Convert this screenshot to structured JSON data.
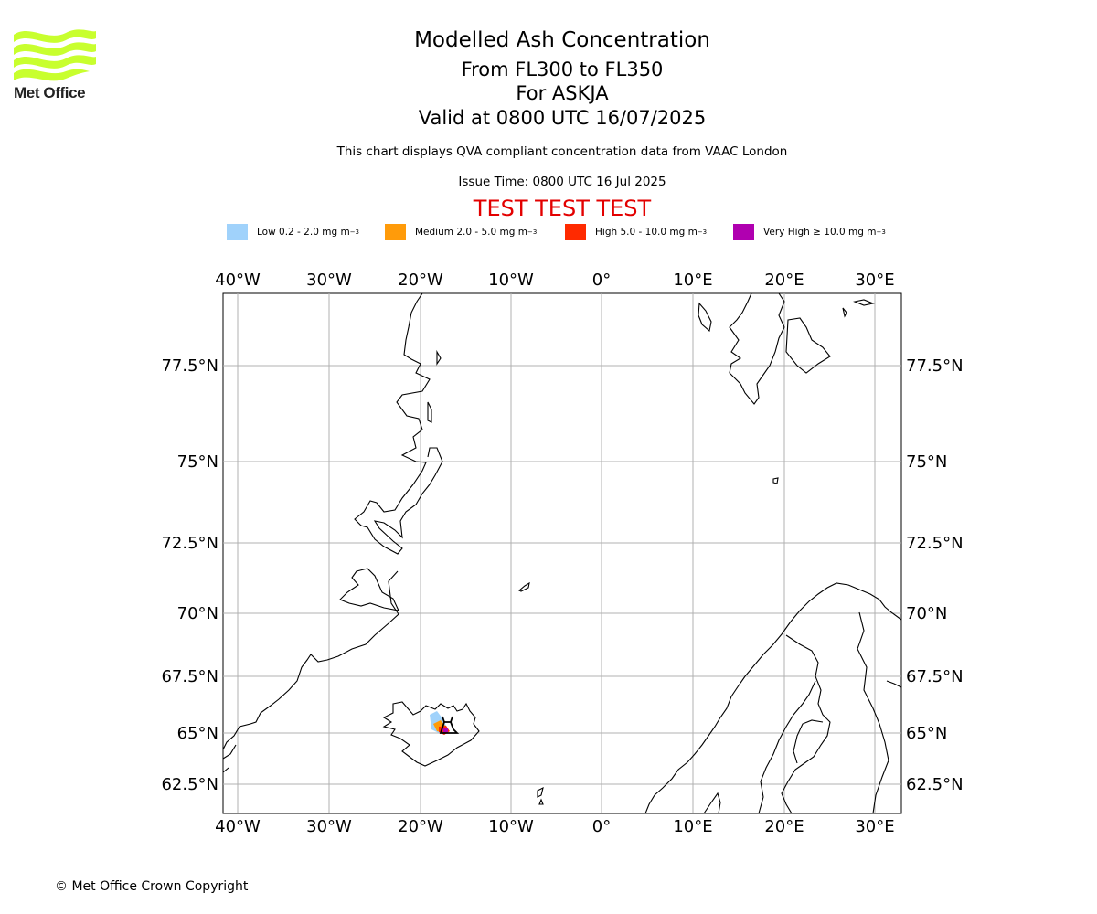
{
  "logo": {
    "text": "Met Office",
    "icon": "met-office-wave-logo",
    "color": "#c8ff2e"
  },
  "title": {
    "line1": "Modelled Ash Concentration",
    "line2": "From FL300 to FL350",
    "line3": "For ASKJA",
    "line4": "Valid at 0800 UTC 16/07/2025"
  },
  "subtitle": "This chart displays QVA compliant concentration data from VAAC London",
  "issue_time": "Issue Time: 0800 UTC 16 Jul 2025",
  "test_banner": "TEST TEST TEST",
  "legend": [
    {
      "label": "Low 0.2 - 2.0 mg m",
      "sup": "−3",
      "color": "#a0d2fb"
    },
    {
      "label": "Medium 2.0 - 5.0 mg m",
      "sup": "−3",
      "color": "#ff9b0a"
    },
    {
      "label": "High 5.0 - 10.0 mg m",
      "sup": "−3",
      "color": "#ff2a00"
    },
    {
      "label": "Very High  ≥  10.0 mg m",
      "sup": "−3",
      "color": "#b000b0"
    }
  ],
  "map": {
    "lon_ticks": [
      "40°W",
      "30°W",
      "20°W",
      "10°W",
      "0°",
      "10°E",
      "20°E",
      "30°E"
    ],
    "lat_ticks": [
      "77.5°N",
      "75°N",
      "72.5°N",
      "70°N",
      "67.5°N",
      "65°N",
      "62.5°N"
    ],
    "volcano_marker": "ASKJA",
    "grid": true
  },
  "copyright": "© Met Office Crown Copyright"
}
